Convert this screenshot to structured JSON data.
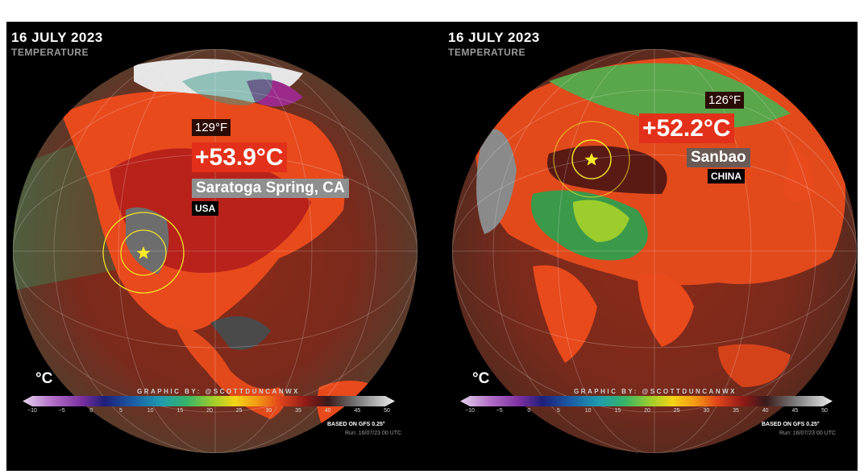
{
  "panels": [
    {
      "date": "16 JULY 2023",
      "subtitle": "TEMPERATURE",
      "temp_f": "129°F",
      "temp_c": "+53.9°C",
      "location": "Saratoga Spring, CA",
      "country": "USA",
      "unit": "°C",
      "credit": "GRAPHIC BY: @SCOTTDUNCANWX",
      "scale_ticks": [
        "−10",
        "−5",
        "0",
        "5",
        "10",
        "15",
        "20",
        "25",
        "30",
        "35",
        "40",
        "45",
        "50"
      ],
      "based_on": "BASED ON GFS 0.25°",
      "run": "Run: 16/07/23 00 UTC"
    },
    {
      "date": "16 JULY 2023",
      "subtitle": "TEMPERATURE",
      "temp_f": "126°F",
      "temp_c": "+52.2°C",
      "location": "Sanbao",
      "country": "CHINA",
      "unit": "°C",
      "credit": "GRAPHIC BY: @SCOTTDUNCANWX",
      "scale_ticks": [
        "−10",
        "−5",
        "0",
        "5",
        "10",
        "15",
        "20",
        "25",
        "30",
        "35",
        "40",
        "45",
        "50"
      ],
      "based_on": "BASED ON GFS 0.25°",
      "run": "Run: 16/07/23 00 UTC"
    }
  ],
  "colors": {
    "background": "#000000",
    "hot_label": "#e3301a",
    "location_label": "#8f8f8f",
    "marker_ring": "#f2e22a",
    "scale": [
      "#d9c3e6",
      "#b36fc7",
      "#7b2fa0",
      "#1e1f7a",
      "#1b5fa6",
      "#1f9bb0",
      "#35b46a",
      "#9ccd2c",
      "#f3d416",
      "#f39a12",
      "#e3451b",
      "#8f1a17",
      "#3a1a1a",
      "#7a7a7a",
      "#e8e8e8"
    ]
  },
  "icons": [
    "star-marker-icon"
  ]
}
